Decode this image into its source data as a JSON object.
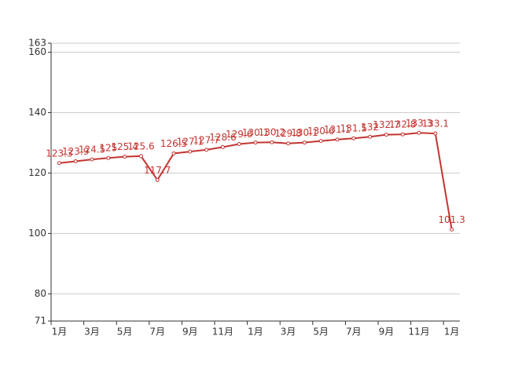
{
  "chart_data": {
    "type": "line",
    "categories": [
      "1月",
      null,
      "3月",
      null,
      "5月",
      null,
      "7月",
      null,
      "9月",
      null,
      "11月",
      null,
      "1月",
      null,
      "3月",
      null,
      "5月",
      null,
      "7月",
      null,
      "9月",
      null,
      "11月",
      null,
      "1月"
    ],
    "values": [
      123.3,
      123.9,
      124.5,
      125,
      125.4,
      125.6,
      117.7,
      126.5,
      127.1,
      127.7,
      128.6,
      129.6,
      130.1,
      130.2,
      129.8,
      130.1,
      130.6,
      131.1,
      131.5,
      132,
      132.7,
      132.8,
      133.3,
      133.1,
      101.3
    ],
    "color": "#c23531",
    "ylim": [
      71,
      163
    ],
    "yticks": [
      71,
      80,
      100,
      120,
      140,
      160,
      163
    ],
    "grid": true
  }
}
